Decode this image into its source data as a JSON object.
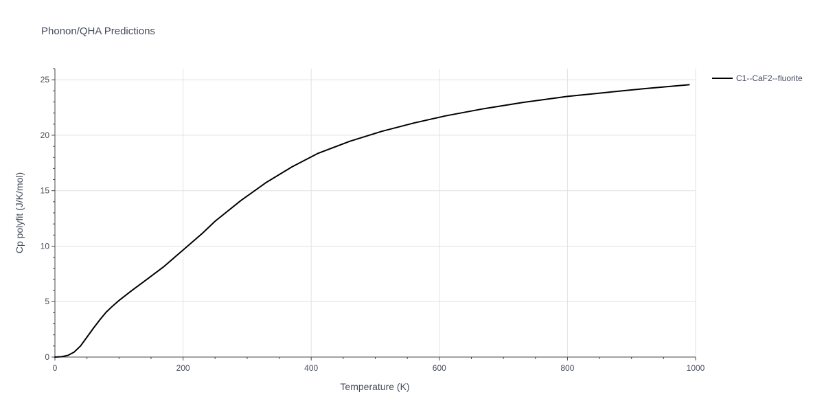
{
  "chart_data": {
    "type": "line",
    "title": "Phonon/QHA Predictions",
    "xlabel": "Temperature (K)",
    "ylabel": "Cp polyfit (J/K/mol)",
    "xlim": [
      0,
      1000
    ],
    "ylim": [
      0,
      26
    ],
    "x_ticks": [
      0,
      200,
      400,
      600,
      800,
      1000
    ],
    "x_tick_labels": [
      "0",
      "200",
      "400",
      "600",
      "800",
      "1000"
    ],
    "y_ticks": [
      0,
      5,
      10,
      15,
      20,
      25
    ],
    "y_tick_labels": [
      "0",
      "5",
      "10",
      "15",
      "20",
      "25"
    ],
    "grid": true,
    "legend_position": "top-right-outside",
    "series": [
      {
        "name": "C1--CaF2--fluorite",
        "color": "#000000",
        "x": [
          0,
          10,
          20,
          30,
          40,
          50,
          60,
          70,
          80,
          90,
          100,
          120,
          140,
          170,
          200,
          230,
          250,
          290,
          330,
          370,
          410,
          460,
          510,
          560,
          610,
          670,
          730,
          800,
          860,
          920,
          990
        ],
        "y": [
          0,
          0.03,
          0.15,
          0.45,
          1.0,
          1.8,
          2.6,
          3.35,
          4.05,
          4.6,
          5.1,
          6.0,
          6.85,
          8.15,
          9.65,
          11.15,
          12.25,
          14.1,
          15.75,
          17.15,
          18.35,
          19.45,
          20.35,
          21.1,
          21.75,
          22.4,
          22.95,
          23.5,
          23.85,
          24.2,
          24.55
        ]
      }
    ]
  }
}
